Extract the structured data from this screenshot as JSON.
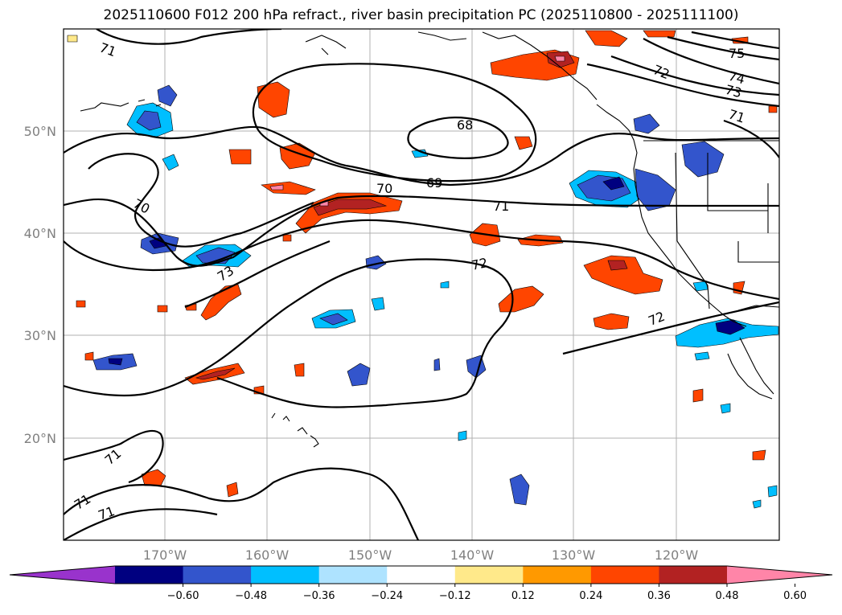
{
  "title": "2025110600 F012 200 hPa refract., river basin precipitation PC (2025110800 - 2025111100)",
  "map": {
    "lat_labels": [
      "50°N",
      "40°N",
      "30°N",
      "20°N"
    ],
    "lon_labels": [
      "170°W",
      "160°W",
      "150°W",
      "140°W",
      "130°W",
      "120°W"
    ],
    "contour_labels": [
      {
        "text": "71"
      },
      {
        "text": "75"
      },
      {
        "text": "72"
      },
      {
        "text": "74"
      },
      {
        "text": "73"
      },
      {
        "text": "71"
      },
      {
        "text": "68"
      },
      {
        "text": "69"
      },
      {
        "text": "70"
      },
      {
        "text": "70"
      },
      {
        "text": "71"
      },
      {
        "text": "72"
      },
      {
        "text": "73"
      },
      {
        "text": "72"
      },
      {
        "text": "71"
      },
      {
        "text": "71"
      },
      {
        "text": "71"
      }
    ]
  },
  "colorbar": {
    "ticks": [
      "−0.60",
      "−0.48",
      "−0.36",
      "−0.24",
      "−0.12",
      "0.12",
      "0.24",
      "0.36",
      "0.48",
      "0.60"
    ],
    "colors": [
      "#9933cc",
      "#000080",
      "#3355cc",
      "#00bfff",
      "#aee3ff",
      "#ffffff",
      "#ffe98a",
      "#ff9900",
      "#ff4500",
      "#b22222",
      "#ff85a8"
    ]
  }
}
